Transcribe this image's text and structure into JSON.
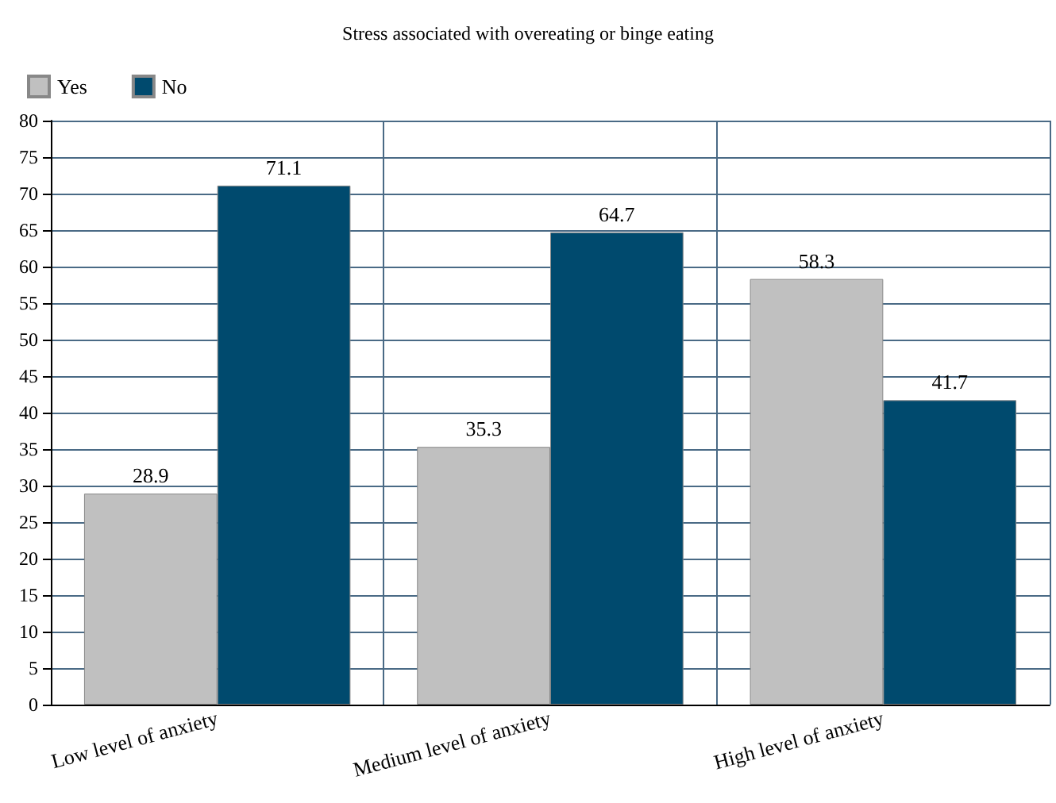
{
  "chart_data": {
    "type": "bar",
    "title": "Stress associated with overeating or binge eating",
    "categories": [
      "Low level of anxiety",
      "Medium level of anxiety",
      "High level of anxiety"
    ],
    "series": [
      {
        "name": "Yes",
        "color": "#c0c0c0",
        "values": [
          28.9,
          35.3,
          58.3
        ]
      },
      {
        "name": "No",
        "color": "#004a6e",
        "values": [
          71.1,
          64.7,
          41.7
        ]
      }
    ],
    "ylim": [
      0,
      80
    ],
    "yticks": [
      0,
      5,
      10,
      15,
      20,
      25,
      30,
      35,
      40,
      45,
      50,
      55,
      60,
      65,
      70,
      75,
      80
    ],
    "grid": true,
    "legend": "top left",
    "data_labels": true
  }
}
